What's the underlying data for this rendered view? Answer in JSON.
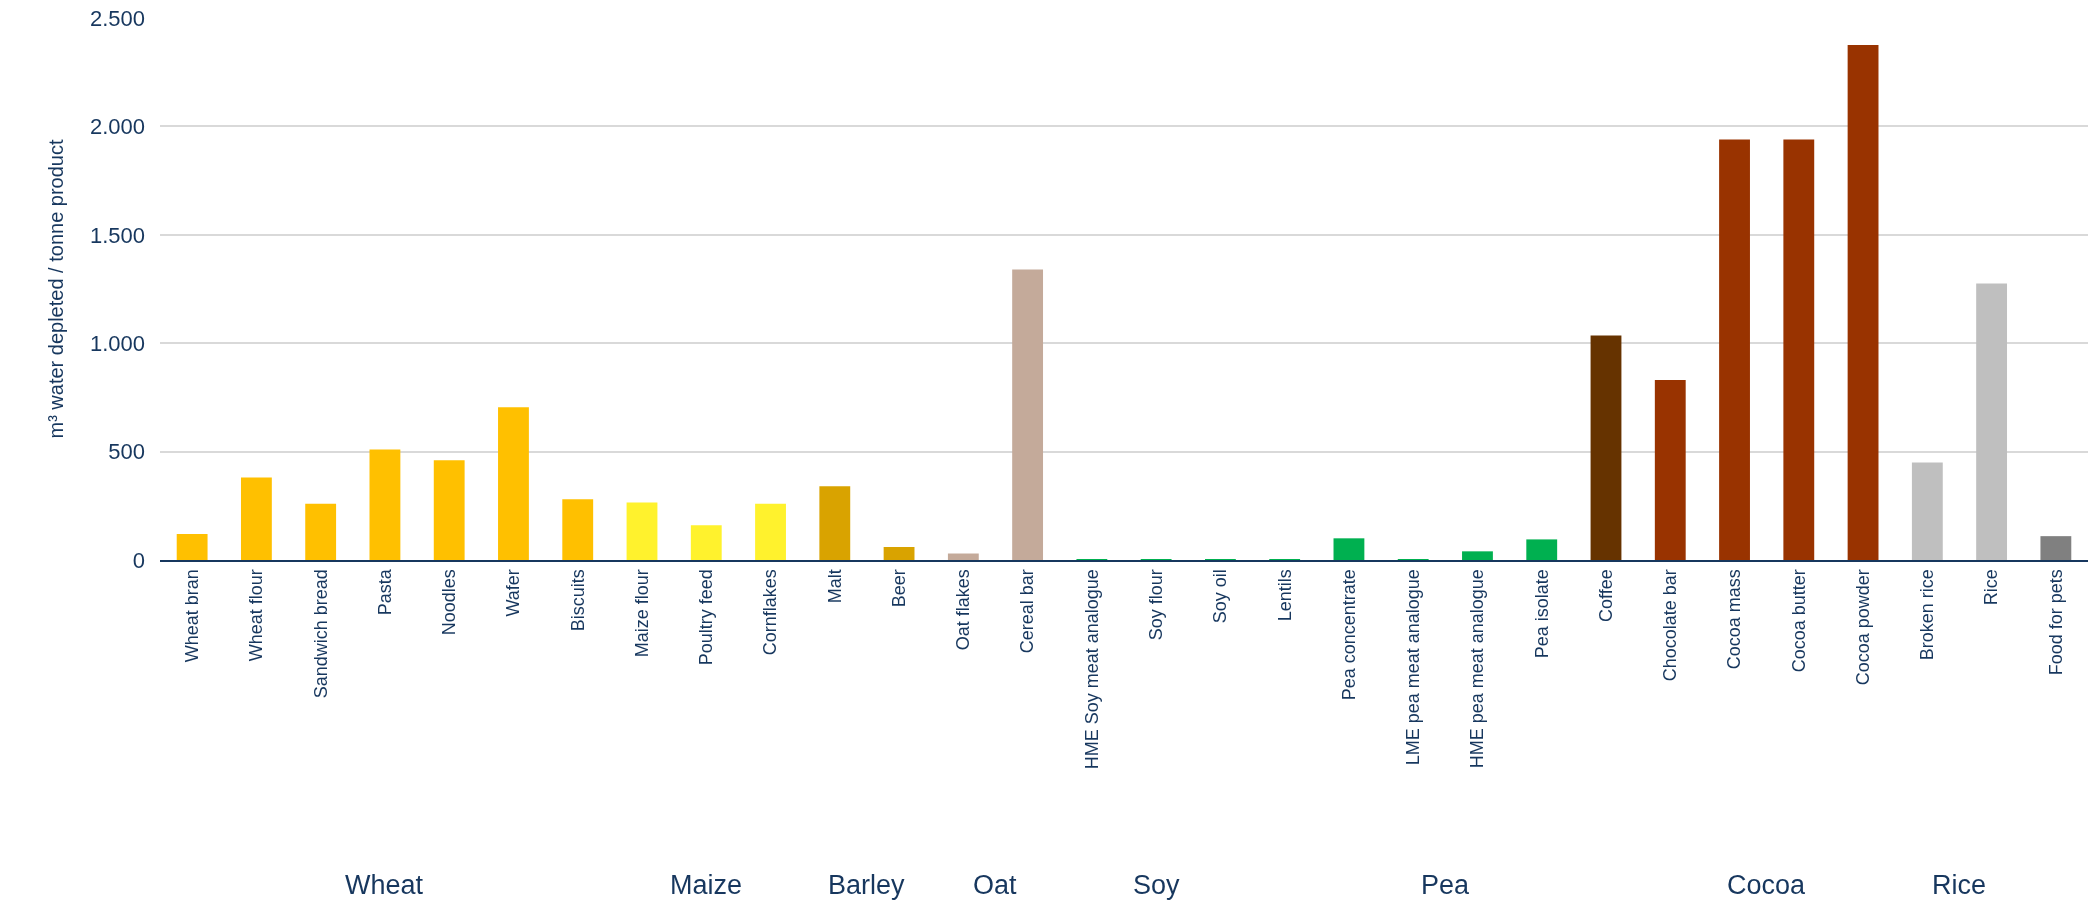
{
  "chart_data": {
    "type": "bar",
    "ylabel": "m³ water depleted / tonne product",
    "categories": [
      "Wheat bran",
      "Wheat flour",
      "Sandwich bread",
      "Pasta",
      "Noodles",
      "Wafer",
      "Biscuits",
      "Maize flour",
      "Poultry feed",
      "Cornflakes",
      "Malt",
      "Beer",
      "Oat flakes",
      "Cereal bar",
      "HME Soy meat analogue",
      "Soy flour",
      "Soy oil",
      "Lentils",
      "Pea concentrate",
      "LME pea meat analogue",
      "HME pea meat analogue",
      "Pea isolate",
      "Coffee",
      "Chocolate bar",
      "Cocoa mass",
      "Cocoa butter",
      "Cocoa powder",
      "Broken rice",
      "Rice",
      "Food for pets"
    ],
    "values": [
      120,
      380,
      260,
      510,
      460,
      705,
      280,
      265,
      160,
      260,
      340,
      60,
      30,
      1340,
      3,
      3,
      3,
      3,
      100,
      3,
      40,
      95,
      1035,
      830,
      1940,
      1940,
      2375,
      450,
      1275,
      110
    ],
    "colors": [
      "#ffc000",
      "#ffc000",
      "#ffc000",
      "#ffc000",
      "#ffc000",
      "#ffc000",
      "#ffc000",
      "#fff22d",
      "#fff22d",
      "#fff22d",
      "#d9a300",
      "#d9a300",
      "#c4aa9a",
      "#c4aa9a",
      "#00b050",
      "#00b050",
      "#00b050",
      "#00b050",
      "#00b050",
      "#00b050",
      "#00b050",
      "#00b050",
      "#663300",
      "#993300",
      "#993300",
      "#993300",
      "#993300",
      "#bfbfbf",
      "#bfbfbf",
      "#808080"
    ],
    "ylim": [
      0,
      2500
    ],
    "yticks": [
      0,
      {
        "value": 500,
        "label": "500"
      },
      {
        "value": 1000,
        "label": "1.000"
      },
      {
        "value": 1500,
        "label": "1.500"
      },
      {
        "value": 2000,
        "label": "2.000"
      },
      {
        "value": 2500,
        "label": "2.500"
      }
    ],
    "grid": "y",
    "annotations": [
      "Wheat",
      "Maize",
      "Barley",
      "Oat",
      "Soy",
      "Pea",
      "Cocoa",
      "Rice"
    ]
  }
}
